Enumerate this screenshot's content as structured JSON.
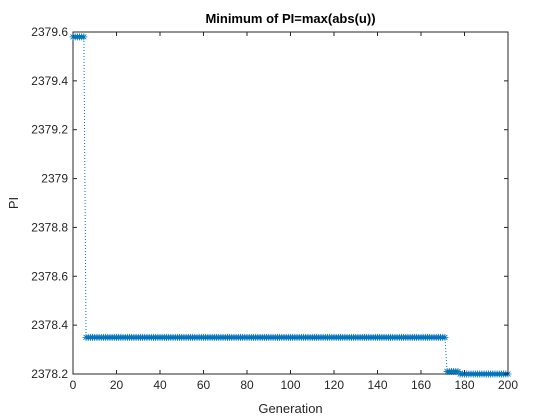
{
  "chart_data": {
    "type": "line",
    "title": "Minimum of PI=max(abs(u))",
    "xlabel": "Generation",
    "ylabel": "PI",
    "xlim": [
      0,
      200
    ],
    "ylim": [
      2378.2,
      2379.6
    ],
    "xticks": [
      0,
      20,
      40,
      60,
      80,
      100,
      120,
      140,
      160,
      180,
      200
    ],
    "yticks": [
      2378.2,
      2378.4,
      2378.6,
      2378.8,
      2379,
      2379.2,
      2379.4,
      2379.6
    ],
    "xtick_labels": [
      "0",
      "20",
      "40",
      "60",
      "80",
      "100",
      "120",
      "140",
      "160",
      "180",
      "200"
    ],
    "ytick_labels": [
      "2378.2",
      "2378.4",
      "2378.6",
      "2378.8",
      "2379",
      "2379.2",
      "2379.4",
      "2379.6"
    ],
    "grid": false,
    "marker": "asterisk",
    "line_style": "dotted",
    "series": [
      {
        "color": "#0072BD",
        "segments": [
          {
            "x_start": 0,
            "x_end": 5,
            "y": 2379.58
          },
          {
            "x_start": 6,
            "x_end": 171,
            "y": 2378.35
          },
          {
            "x_start": 172,
            "x_end": 177,
            "y": 2378.21
          },
          {
            "x_start": 178,
            "x_end": 200,
            "y": 2378.2
          }
        ]
      }
    ]
  }
}
